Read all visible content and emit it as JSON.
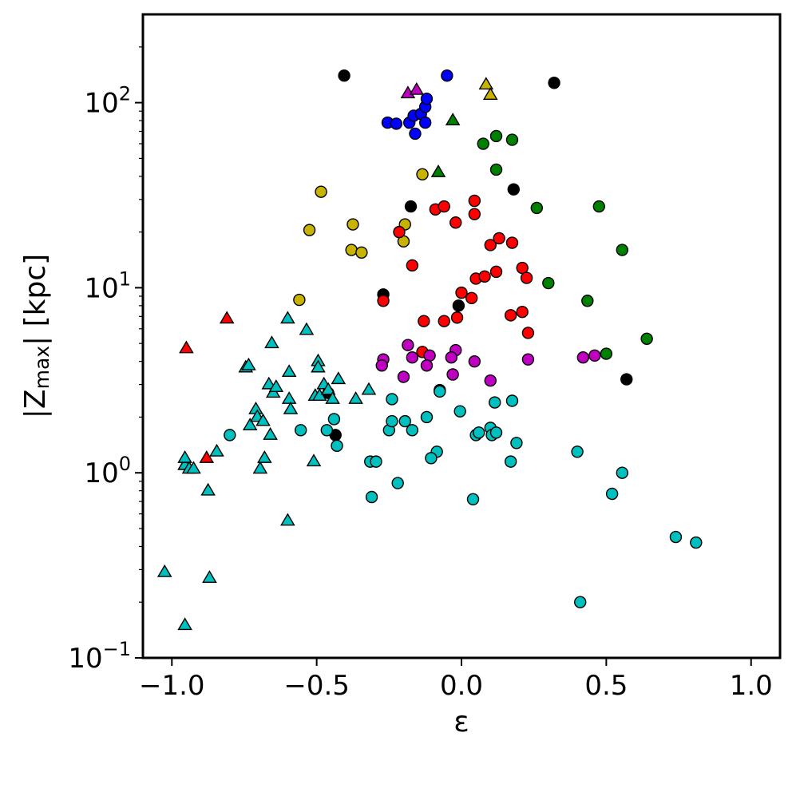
{
  "chart_data": {
    "type": "scatter",
    "title": "",
    "xlabel": "ε",
    "ylabel": {
      "pre": "|Z",
      "sub": "max",
      "post": "| [kpc]"
    },
    "xlim": [
      -1.1,
      1.1
    ],
    "ylim": [
      0.1,
      300
    ],
    "yscale": "log",
    "grid": false,
    "legend": "none",
    "x_ticks": [
      {
        "value": -1.0,
        "label": "−1.0"
      },
      {
        "value": -0.5,
        "label": "−0.5"
      },
      {
        "value": 0.0,
        "label": "0.0"
      },
      {
        "value": 0.5,
        "label": "0.5"
      },
      {
        "value": 1.0,
        "label": "1.0"
      }
    ],
    "y_ticks": [
      {
        "value": 0.1,
        "base": "10",
        "exp": "−1"
      },
      {
        "value": 1,
        "base": "10",
        "exp": "0"
      },
      {
        "value": 10,
        "base": "10",
        "exp": "1"
      },
      {
        "value": 100,
        "base": "10",
        "exp": "2"
      }
    ],
    "series": [
      {
        "color": "#0000ff",
        "marker": "circle",
        "points": [
          [
            -0.255,
            78
          ],
          [
            -0.225,
            77
          ],
          [
            -0.18,
            78
          ],
          [
            -0.165,
            85
          ],
          [
            -0.16,
            68
          ],
          [
            -0.14,
            87
          ],
          [
            -0.125,
            78
          ],
          [
            -0.125,
            95
          ],
          [
            -0.12,
            105
          ],
          [
            -0.05,
            140
          ]
        ]
      },
      {
        "color": "#000000",
        "marker": "circle",
        "points": [
          [
            -0.405,
            140
          ],
          [
            0.32,
            128
          ],
          [
            -0.175,
            27.5
          ],
          [
            0.18,
            34
          ],
          [
            -0.27,
            9.2
          ],
          [
            -0.01,
            8.0
          ],
          [
            0.57,
            3.2
          ],
          [
            -0.46,
            2.7
          ],
          [
            -0.075,
            2.8
          ],
          [
            -0.435,
            1.6
          ]
        ]
      },
      {
        "color": "#c8b400",
        "marker": "circle",
        "points": [
          [
            -0.485,
            33
          ],
          [
            -0.525,
            20.5
          ],
          [
            -0.375,
            22
          ],
          [
            -0.195,
            22
          ],
          [
            -0.135,
            41
          ],
          [
            -0.2,
            17.8
          ],
          [
            -0.38,
            16
          ],
          [
            -0.345,
            15.5
          ],
          [
            -0.56,
            8.6
          ]
        ]
      },
      {
        "color": "#008000",
        "marker": "circle",
        "points": [
          [
            0.075,
            60
          ],
          [
            0.12,
            66
          ],
          [
            0.175,
            63
          ],
          [
            0.12,
            43.5
          ],
          [
            0.26,
            27
          ],
          [
            0.475,
            27.5
          ],
          [
            0.555,
            16
          ],
          [
            0.3,
            10.6
          ],
          [
            0.435,
            8.5
          ],
          [
            0.5,
            4.4
          ],
          [
            0.64,
            5.3
          ]
        ]
      },
      {
        "color": "#ff0000",
        "marker": "circle",
        "points": [
          [
            -0.09,
            26.5
          ],
          [
            -0.06,
            27.5
          ],
          [
            -0.02,
            22.5
          ],
          [
            0.045,
            29.5
          ],
          [
            0.045,
            25
          ],
          [
            -0.215,
            20
          ],
          [
            0.1,
            17
          ],
          [
            0.13,
            18.5
          ],
          [
            0.175,
            17.5
          ],
          [
            -0.17,
            13.2
          ],
          [
            0.05,
            11.2
          ],
          [
            0.08,
            11.5
          ],
          [
            0.12,
            12.2
          ],
          [
            0.21,
            12.8
          ],
          [
            0.225,
            11.3
          ],
          [
            0.0,
            9.4
          ],
          [
            0.035,
            8.8
          ],
          [
            -0.27,
            8.5
          ],
          [
            0.17,
            7.1
          ],
          [
            0.21,
            7.4
          ],
          [
            -0.13,
            6.6
          ],
          [
            -0.06,
            6.6
          ],
          [
            -0.015,
            6.9
          ],
          [
            0.23,
            5.7
          ],
          [
            -0.135,
            4.5
          ]
        ]
      },
      {
        "color": "#c000c0",
        "marker": "circle",
        "points": [
          [
            -0.27,
            4.1
          ],
          [
            -0.185,
            4.9
          ],
          [
            -0.17,
            4.2
          ],
          [
            -0.11,
            4.3
          ],
          [
            -0.02,
            4.6
          ],
          [
            -0.035,
            4.2
          ],
          [
            -0.275,
            3.8
          ],
          [
            -0.12,
            3.8
          ],
          [
            0.045,
            4.0
          ],
          [
            0.23,
            4.1
          ],
          [
            0.42,
            4.2
          ],
          [
            0.46,
            4.3
          ],
          [
            -0.2,
            3.3
          ],
          [
            -0.03,
            3.4
          ],
          [
            0.1,
            3.15
          ]
        ]
      },
      {
        "color": "#00bfbf",
        "marker": "circle",
        "points": [
          [
            -0.8,
            1.6
          ],
          [
            -0.555,
            1.7
          ],
          [
            -0.44,
            1.95
          ],
          [
            -0.465,
            1.7
          ],
          [
            -0.43,
            1.4
          ],
          [
            -0.315,
            1.15
          ],
          [
            -0.295,
            1.15
          ],
          [
            -0.31,
            0.74
          ],
          [
            -0.24,
            2.5
          ],
          [
            -0.25,
            1.7
          ],
          [
            -0.24,
            1.9
          ],
          [
            -0.195,
            1.9
          ],
          [
            -0.17,
            1.7
          ],
          [
            -0.12,
            2.0
          ],
          [
            -0.085,
            1.3
          ],
          [
            -0.105,
            1.2
          ],
          [
            -0.22,
            0.88
          ],
          [
            -0.075,
            2.75
          ],
          [
            -0.005,
            2.15
          ],
          [
            0.05,
            1.6
          ],
          [
            0.06,
            1.65
          ],
          [
            0.1,
            1.75
          ],
          [
            0.105,
            1.6
          ],
          [
            0.115,
            2.4
          ],
          [
            0.12,
            1.65
          ],
          [
            0.175,
            2.45
          ],
          [
            0.19,
            1.45
          ],
          [
            0.17,
            1.15
          ],
          [
            0.04,
            0.72
          ],
          [
            0.4,
            1.3
          ],
          [
            0.41,
            0.2
          ],
          [
            0.52,
            0.77
          ],
          [
            0.555,
            1.0
          ],
          [
            0.74,
            0.45
          ],
          [
            0.81,
            0.42
          ]
        ]
      },
      {
        "color": "#ff0000",
        "marker": "triangle",
        "points": [
          [
            -0.95,
            4.7
          ],
          [
            -0.81,
            6.8
          ],
          [
            -0.88,
            1.2
          ],
          [
            -0.955,
            1.1
          ]
        ]
      },
      {
        "color": "#c000c0",
        "marker": "triangle",
        "points": [
          [
            -0.185,
            112
          ],
          [
            -0.155,
            117
          ]
        ]
      },
      {
        "color": "#c8b400",
        "marker": "triangle",
        "points": [
          [
            0.085,
            125
          ],
          [
            0.1,
            110
          ]
        ]
      },
      {
        "color": "#008000",
        "marker": "triangle",
        "points": [
          [
            -0.03,
            80
          ],
          [
            -0.08,
            42
          ]
        ]
      },
      {
        "color": "#00bfbf",
        "marker": "triangle",
        "points": [
          [
            -1.025,
            0.29
          ],
          [
            -0.955,
            0.15
          ],
          [
            -0.87,
            0.27
          ],
          [
            -0.955,
            1.1
          ],
          [
            -0.955,
            1.2
          ],
          [
            -0.94,
            1.05
          ],
          [
            -0.925,
            1.05
          ],
          [
            -0.875,
            0.8
          ],
          [
            -0.845,
            1.3
          ],
          [
            -0.745,
            3.7
          ],
          [
            -0.735,
            3.8
          ],
          [
            -0.73,
            1.8
          ],
          [
            -0.71,
            2.2
          ],
          [
            -0.705,
            2.0
          ],
          [
            -0.695,
            1.05
          ],
          [
            -0.68,
            1.2
          ],
          [
            -0.665,
            3.0
          ],
          [
            -0.66,
            1.6
          ],
          [
            -0.655,
            5.0
          ],
          [
            -0.65,
            2.7
          ],
          [
            -0.64,
            2.9
          ],
          [
            -0.685,
            1.9
          ],
          [
            -0.6,
            6.8
          ],
          [
            -0.595,
            3.5
          ],
          [
            -0.595,
            2.5
          ],
          [
            -0.59,
            2.2
          ],
          [
            -0.6,
            0.55
          ],
          [
            -0.535,
            5.9
          ],
          [
            -0.51,
            1.15
          ],
          [
            -0.505,
            2.6
          ],
          [
            -0.495,
            4.0
          ],
          [
            -0.495,
            3.7
          ],
          [
            -0.49,
            2.6
          ],
          [
            -0.475,
            3.0
          ],
          [
            -0.46,
            2.8
          ],
          [
            -0.445,
            2.5
          ],
          [
            -0.425,
            3.2
          ],
          [
            -0.365,
            2.5
          ],
          [
            -0.32,
            2.8
          ]
        ]
      }
    ]
  }
}
